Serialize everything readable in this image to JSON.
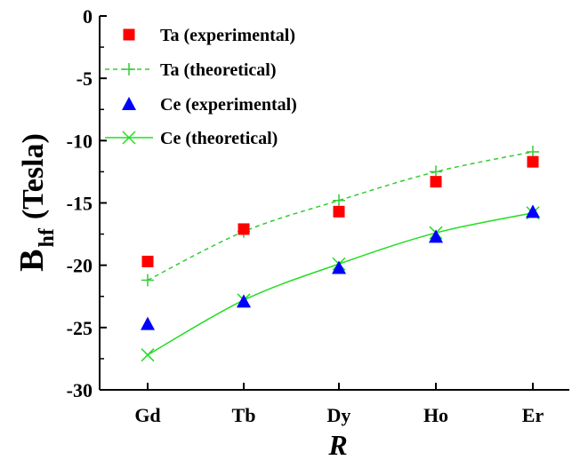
{
  "chart_data": {
    "type": "scatter",
    "title": "",
    "xlabel": "R",
    "ylabel_main": "B",
    "ylabel_sub": "hf",
    "ylabel_unit": "(Tesla)",
    "categories": [
      "Gd",
      "Tb",
      "Dy",
      "Ho",
      "Er"
    ],
    "ylim": [
      -30,
      0
    ],
    "yticks": [
      0,
      -5,
      -10,
      -15,
      -20,
      -25,
      -30
    ],
    "ytick_labels": [
      "0",
      "-5",
      "-10",
      "-15",
      "-20",
      "-25",
      "-30"
    ],
    "grid": false,
    "legend_position": "top-left",
    "series": [
      {
        "name": "Ta (experimental)",
        "kind": "marker",
        "marker": "square",
        "color": "#ff0000",
        "values": [
          -19.7,
          -17.1,
          -15.7,
          -13.3,
          -11.7
        ]
      },
      {
        "name": "Ta (theoretical)",
        "kind": "dashed-line",
        "marker": "plus",
        "color": "#33cc33",
        "values": [
          -21.2,
          -17.3,
          -14.8,
          -12.5,
          -10.9
        ]
      },
      {
        "name": "Ce (experimental)",
        "kind": "marker",
        "marker": "triangle",
        "color": "#0000ff",
        "values": [
          -24.7,
          -22.9,
          -20.2,
          -17.7,
          -15.7
        ]
      },
      {
        "name": "Ce (theoretical)",
        "kind": "solid-line",
        "marker": "x",
        "color": "#22dd22",
        "values": [
          -27.2,
          -22.8,
          -19.9,
          -17.4,
          -15.8
        ]
      }
    ]
  }
}
